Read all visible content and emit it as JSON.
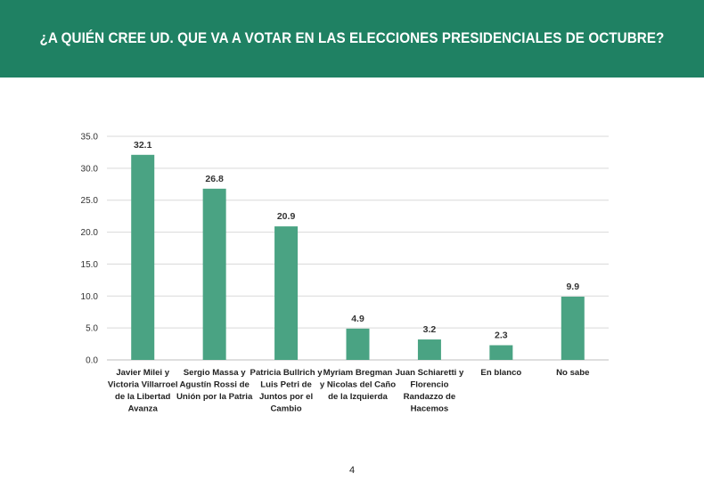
{
  "header": {
    "title": "¿A QUIÉN CREE UD. QUE VA A VOTAR EN LAS ELECCIONES PRESIDENCIALES DE OCTUBRE?"
  },
  "page_number": "4",
  "colors": {
    "header_bg": "#1f8163",
    "bar": "#4aa383",
    "gridline": "#d9d9d9"
  },
  "chart_data": {
    "type": "bar",
    "categories": [
      [
        "Javier Milei y",
        "Victoria Villarroel",
        "de la Libertad",
        "Avanza"
      ],
      [
        "Sergio Massa y",
        "Agustín Rossi de",
        "Unión por la Patria"
      ],
      [
        "Patricia Bullrich y",
        "Luis Petri de",
        "Juntos por el",
        "Cambio"
      ],
      [
        "Myriam Bregman",
        "y Nicolas del Caño",
        "de la Izquierda"
      ],
      [
        "Juan Schiaretti y",
        "Florencio",
        "Randazzo de",
        "Hacemos"
      ],
      [
        "En blanco"
      ],
      [
        "No sabe"
      ]
    ],
    "values": [
      32.1,
      26.8,
      20.9,
      4.9,
      3.2,
      2.3,
      9.9
    ],
    "value_labels": [
      "32.1",
      "26.8",
      "20.9",
      "4.9",
      "3.2",
      "2.3",
      "9.9"
    ],
    "y_ticks": [
      "0.0",
      "5.0",
      "10.0",
      "15.0",
      "20.0",
      "25.0",
      "30.0",
      "35.0"
    ],
    "ylim": [
      0,
      35
    ],
    "grid": true,
    "legend": "none"
  }
}
